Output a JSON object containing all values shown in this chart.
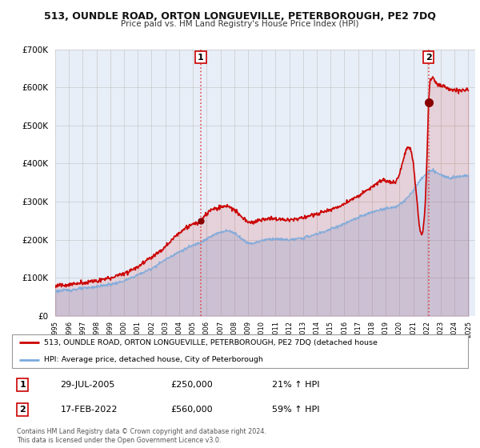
{
  "title": "513, OUNDLE ROAD, ORTON LONGUEVILLE, PETERBOROUGH, PE2 7DQ",
  "subtitle": "Price paid vs. HM Land Registry's House Price Index (HPI)",
  "ylim": [
    0,
    700000
  ],
  "yticks": [
    0,
    100000,
    200000,
    300000,
    400000,
    500000,
    600000,
    700000
  ],
  "xlim_start": 1995.0,
  "xlim_end": 2025.5,
  "background_color": "#e8eef8",
  "grid_color": "#c8c8c8",
  "red_line_color": "#cc0000",
  "blue_line_color": "#7aaadd",
  "transaction1_date": 2005.57,
  "transaction1_price": 250000,
  "transaction1_label": "1",
  "transaction2_date": 2022.12,
  "transaction2_price": 560000,
  "transaction2_label": "2",
  "legend_line1": "513, OUNDLE ROAD, ORTON LONGUEVILLE, PETERBOROUGH, PE2 7DQ (detached house",
  "legend_line2": "HPI: Average price, detached house, City of Peterborough",
  "info1_num": "1",
  "info1_date": "29-JUL-2005",
  "info1_price": "£250,000",
  "info1_hpi": "21% ↑ HPI",
  "info2_num": "2",
  "info2_date": "17-FEB-2022",
  "info2_price": "£560,000",
  "info2_hpi": "59% ↑ HPI",
  "footer1": "Contains HM Land Registry data © Crown copyright and database right 2024.",
  "footer2": "This data is licensed under the Open Government Licence v3.0."
}
